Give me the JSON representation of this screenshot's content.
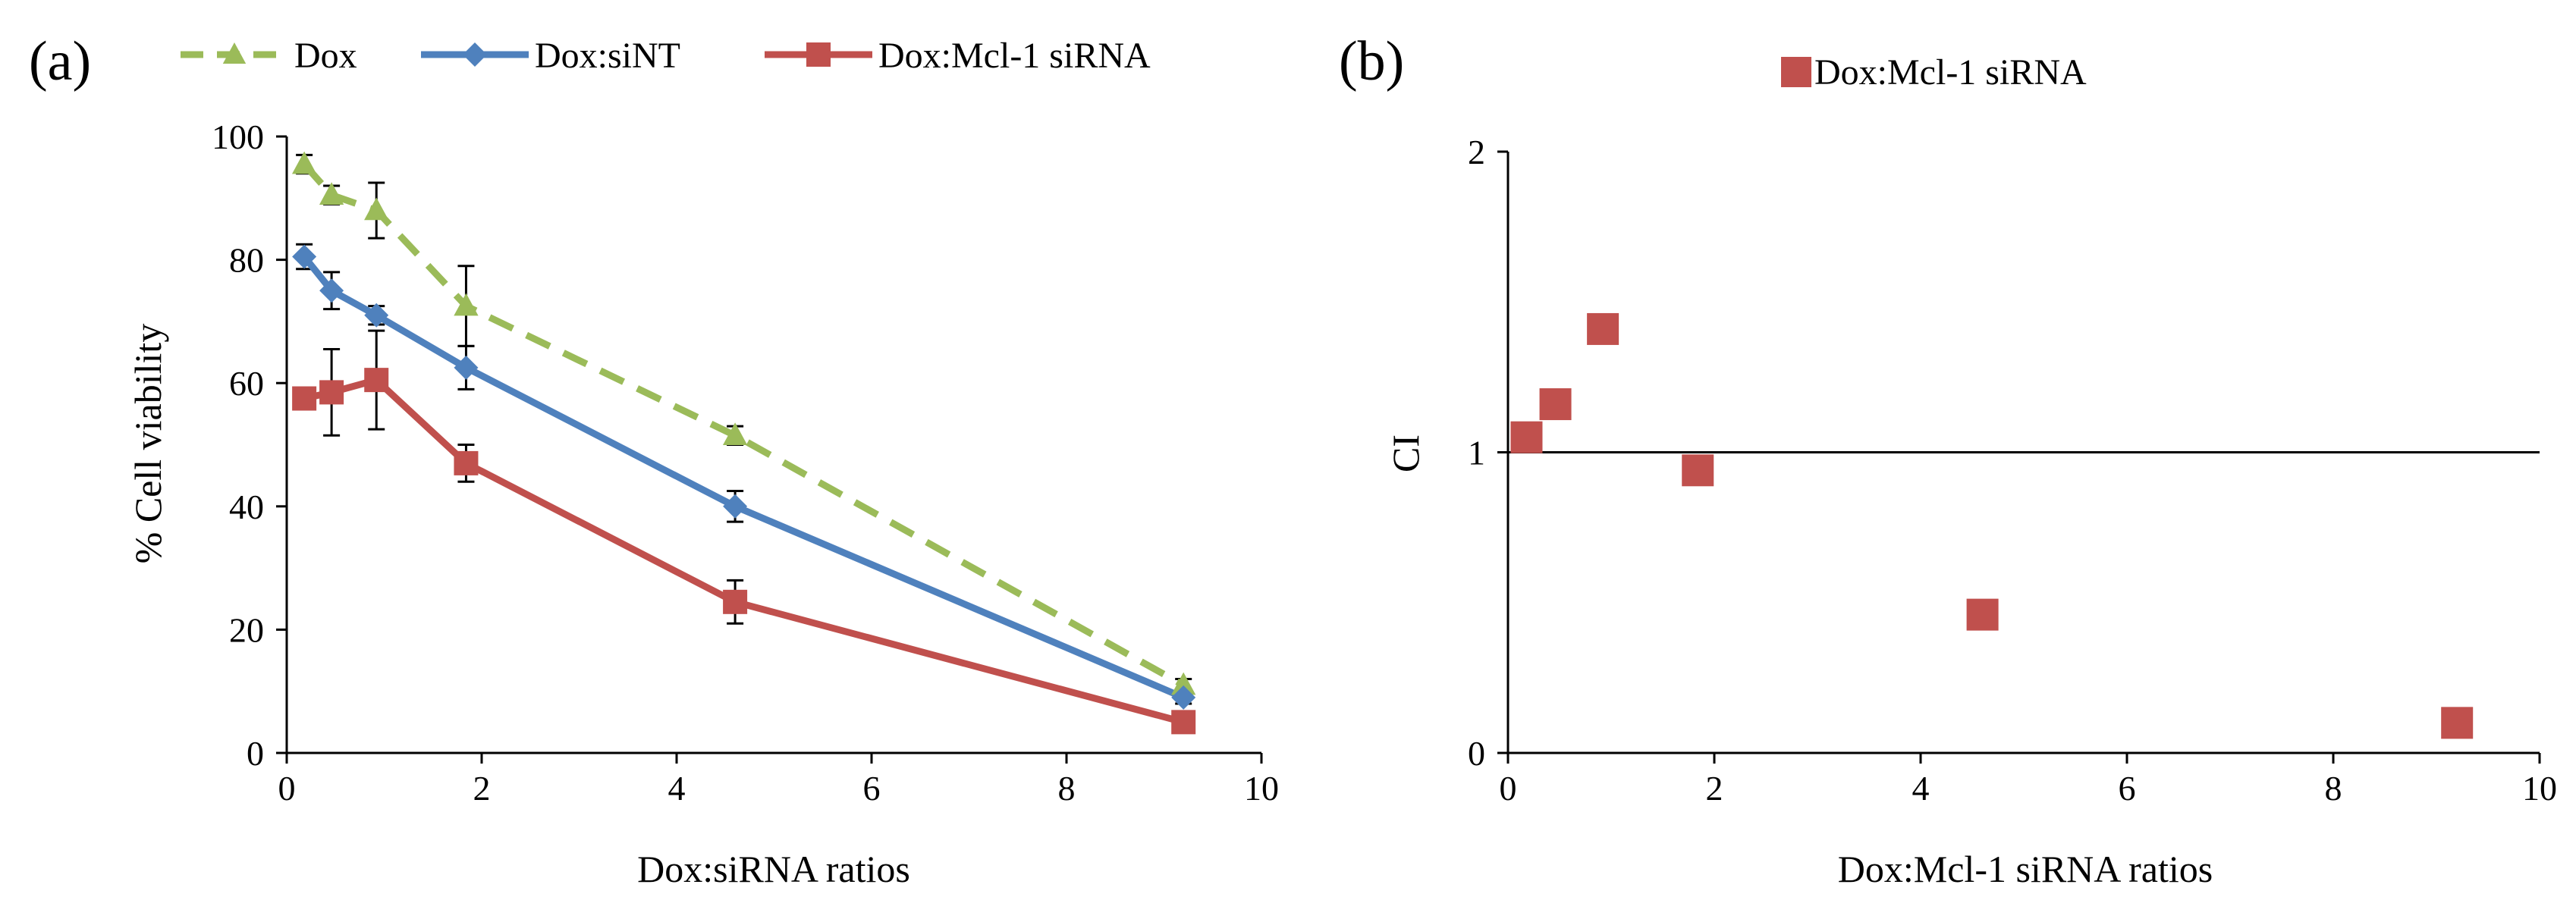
{
  "panel_labels": {
    "a": "(a)",
    "b": "(b)"
  },
  "colors": {
    "dox": "#9BBB59",
    "dox_sint": "#4F81BD",
    "dox_mcl1": "#C0504D",
    "axis": "#000000"
  },
  "chart_data": [
    {
      "type": "line",
      "panel": "(a)",
      "title": "",
      "xlabel": "Dox:siRNA ratios",
      "ylabel": "% Cell viability",
      "xlim": [
        0,
        10
      ],
      "ylim": [
        0,
        100
      ],
      "xticks": [
        0,
        2,
        4,
        6,
        8,
        10
      ],
      "yticks": [
        0,
        20,
        40,
        60,
        80,
        100
      ],
      "grid": false,
      "legend": "top",
      "series": [
        {
          "name": "Dox",
          "color": "#9BBB59",
          "line_style": "dashed",
          "marker": "triangle",
          "x": [
            0.18,
            0.46,
            0.92,
            1.84,
            4.6,
            9.2
          ],
          "y": [
            95.5,
            90.5,
            88,
            72.5,
            51.5,
            11
          ],
          "err": [
            1.5,
            1.5,
            4.5,
            6.5,
            1.5,
            1
          ]
        },
        {
          "name": "Dox:siNT",
          "color": "#4F81BD",
          "line_style": "solid",
          "marker": "diamond",
          "x": [
            0.18,
            0.46,
            0.92,
            1.84,
            4.6,
            9.2
          ],
          "y": [
            80.5,
            75,
            71,
            62.5,
            40,
            9
          ],
          "err": [
            2,
            3,
            1.5,
            3.5,
            2.5,
            1
          ]
        },
        {
          "name": "Dox:Mcl-1 siRNA",
          "color": "#C0504D",
          "line_style": "solid",
          "marker": "square",
          "x": [
            0.18,
            0.46,
            0.92,
            1.84,
            4.6,
            9.2
          ],
          "y": [
            57.5,
            58.5,
            60.5,
            47,
            24.5,
            5
          ],
          "err": [
            1.5,
            7,
            8,
            3,
            3.5,
            1
          ]
        }
      ]
    },
    {
      "type": "scatter",
      "panel": "(b)",
      "title": "",
      "xlabel": "Dox:Mcl-1 siRNA ratios",
      "ylabel": "CI",
      "xlim": [
        0,
        10
      ],
      "ylim": [
        0,
        2
      ],
      "xticks": [
        0,
        2,
        4,
        6,
        8,
        10
      ],
      "yticks": [
        0,
        1,
        2
      ],
      "reference_line_y": 1,
      "grid": false,
      "legend": "top",
      "series": [
        {
          "name": "Dox:Mcl-1 siRNA",
          "color": "#C0504D",
          "marker": "square",
          "x": [
            0.18,
            0.46,
            0.92,
            1.84,
            4.6,
            9.2
          ],
          "y": [
            1.05,
            1.16,
            1.41,
            0.94,
            0.46,
            0.1
          ]
        }
      ]
    }
  ]
}
